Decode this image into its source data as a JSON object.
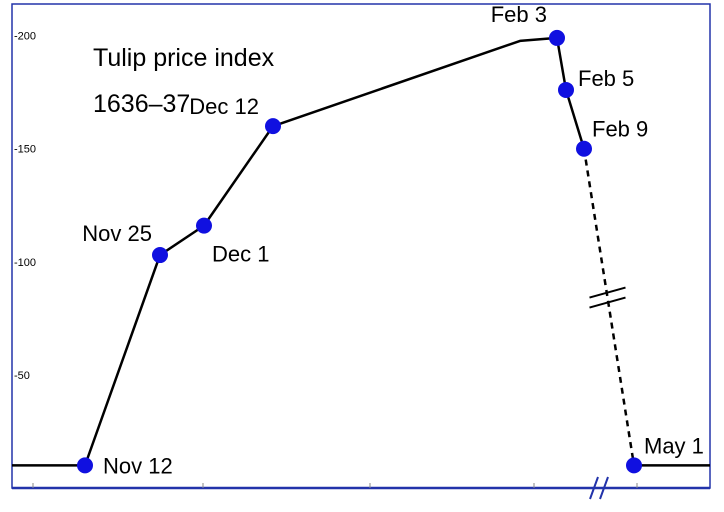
{
  "chart_data": {
    "type": "line",
    "title": "Tulip price index",
    "subtitle": "1636–37",
    "xlabel": "",
    "ylabel": "",
    "ylim": [
      0,
      214
    ],
    "yticks": [
      {
        "value": 50,
        "label": "-50"
      },
      {
        "value": 100,
        "label": "-100"
      },
      {
        "value": 150,
        "label": "-150"
      },
      {
        "value": 200,
        "label": "-200"
      }
    ],
    "grid": false,
    "legend": "none",
    "colors": {
      "frame": "#2233aa",
      "line": "#000000",
      "marker": "#1010e0",
      "baseline": "#2233aa"
    },
    "axis_break": true,
    "series": [
      {
        "points": [
          {
            "x": "Nov 12",
            "y": 10,
            "label": "Nov 12"
          },
          {
            "x": "Nov 25",
            "y": 103,
            "label": "Nov 25"
          },
          {
            "x": "Dec 1",
            "y": 116,
            "label": "Dec 1"
          },
          {
            "x": "Dec 12",
            "y": 160,
            "label": "Dec 12"
          },
          {
            "x": "Feb 3",
            "y": 199,
            "label": "Feb 3"
          },
          {
            "x": "Feb 5",
            "y": 176,
            "label": "Feb 5"
          },
          {
            "x": "Feb 9",
            "y": 150,
            "label": "Feb 9"
          },
          {
            "x": "May 1",
            "y": 10,
            "label": "May 1"
          }
        ]
      }
    ]
  }
}
